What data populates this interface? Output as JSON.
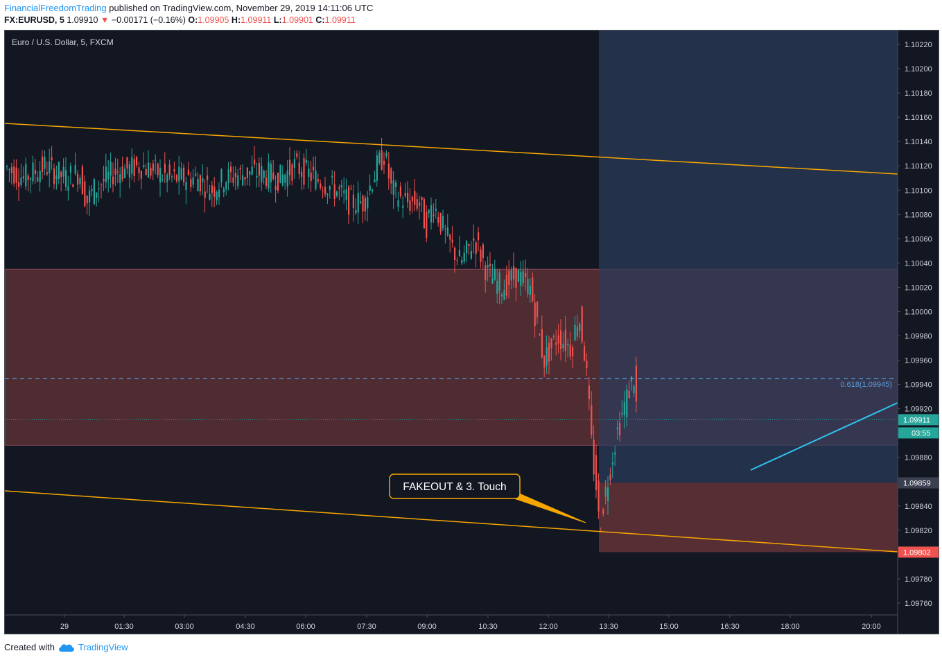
{
  "header": {
    "author": "FinancialFreedomTrading",
    "published_text": " published on TradingView.com, November 29, 2019 14:11:06 UTC",
    "symbol_text": "FX:EURUSD, 5",
    "last_price": "1.09910",
    "change_arrow": "▼",
    "change_text": "−0.00171 (−0.16%)",
    "o_label": "O:",
    "o_value": "1.09905",
    "h_label": "H:",
    "h_value": "1.09911",
    "l_label": "L:",
    "l_value": "1.09901",
    "c_label": "C:",
    "c_value": "1.09911"
  },
  "chart_title": "Euro / U.S. Dollar, 5, FXCM",
  "fib_label": "0.618(1.09945)",
  "annotation": "FAKEOUT & 3. Touch",
  "price_badges": {
    "current": "1.09911",
    "countdown": "03:55",
    "stop": "1.09859",
    "target": "1.09802"
  },
  "footer": {
    "created_with": "Created with",
    "brand": "TradingView"
  },
  "colors": {
    "background": "#131722",
    "up": "#26a69a",
    "down": "#ef5350",
    "trendline": "#f7a600",
    "resistance_zone": "#5b2f35",
    "long_zone": "#2b3c5c",
    "fib": "#5b9bd5",
    "cyan_line": "#2ec4f0"
  },
  "chart_data": {
    "type": "candlestick",
    "title": "Euro / U.S. Dollar, 5, FXCM",
    "y_ticks": [
      "1.10220",
      "1.10200",
      "1.10180",
      "1.10160",
      "1.10140",
      "1.10120",
      "1.10100",
      "1.10080",
      "1.10060",
      "1.10040",
      "1.10020",
      "1.10000",
      "1.09980",
      "1.09960",
      "1.09940",
      "1.09920",
      "1.09900",
      "1.09880",
      "1.09860",
      "1.09840",
      "1.09820",
      "1.09800",
      "1.09780",
      "1.09760"
    ],
    "x_ticks": [
      "29",
      "01:30",
      "03:00",
      "04:30",
      "06:00",
      "07:30",
      "09:00",
      "10:30",
      "12:00",
      "13:30",
      "15:00",
      "16:30",
      "18:00",
      "20:00"
    ],
    "ylim": [
      1.0975,
      1.1023
    ],
    "levels": {
      "fib_0618": 1.09945,
      "current": 1.09911,
      "stop": 1.09859,
      "target": 1.09802
    },
    "resistance_zone": [
      1.0989,
      1.10035
    ],
    "series_path_hint": [
      [
        0,
        1.1012
      ],
      [
        30,
        1.1011
      ],
      [
        60,
        1.1012
      ],
      [
        90,
        1.1011
      ],
      [
        110,
        1.10115
      ],
      [
        120,
        1.1009
      ],
      [
        130,
        1.101
      ],
      [
        160,
        1.10115
      ],
      [
        200,
        1.1012
      ],
      [
        240,
        1.1011
      ],
      [
        280,
        1.1011
      ],
      [
        300,
        1.101
      ],
      [
        320,
        1.1011
      ],
      [
        360,
        1.10115
      ],
      [
        400,
        1.1011
      ],
      [
        420,
        1.1012
      ],
      [
        450,
        1.1011
      ],
      [
        480,
        1.101
      ],
      [
        500,
        1.1009
      ],
      [
        520,
        1.1009
      ],
      [
        540,
        1.1012
      ],
      [
        550,
        1.1013
      ],
      [
        560,
        1.101
      ],
      [
        580,
        1.1009
      ],
      [
        600,
        1.1009
      ],
      [
        610,
        1.1007
      ],
      [
        620,
        1.1009
      ],
      [
        640,
        1.1006
      ],
      [
        660,
        1.1004
      ],
      [
        680,
        1.1006
      ],
      [
        700,
        1.1003
      ],
      [
        720,
        1.1002
      ],
      [
        740,
        1.1003
      ],
      [
        760,
        1.1002
      ],
      [
        770,
        1.0999
      ],
      [
        780,
        1.0996
      ],
      [
        800,
        1.0998
      ],
      [
        820,
        1.0997
      ],
      [
        830,
        1.1
      ],
      [
        840,
        1.0996
      ],
      [
        850,
        1.0988
      ],
      [
        855,
        1.0986
      ],
      [
        860,
        1.0982
      ],
      [
        865,
        1.0984
      ],
      [
        875,
        1.0987
      ],
      [
        885,
        1.099
      ],
      [
        895,
        1.0992
      ],
      [
        905,
        1.0994
      ],
      [
        910,
        1.09945
      ],
      [
        915,
        1.0991
      ]
    ]
  }
}
